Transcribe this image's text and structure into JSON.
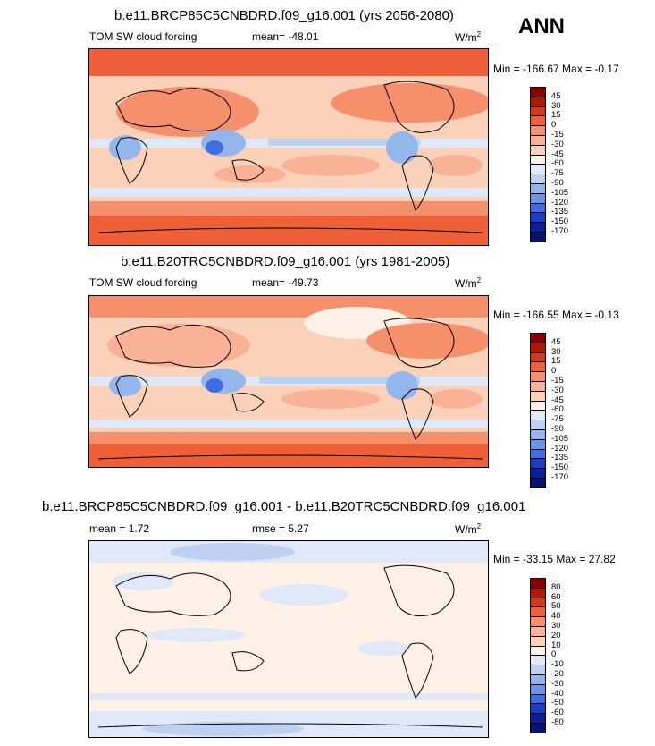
{
  "season": "ANN",
  "panels": [
    {
      "title": "b.e11.BRCP85C5CNBDRD.f09_g16.001 (yrs 2056-2080)",
      "left_label": "TOM SW cloud forcing",
      "center_label": "mean= -48.01",
      "units": "W/m",
      "units_exp": "2",
      "minmax": "Min = -166.67 Max =  -0.17",
      "legend_levels": [
        "45",
        "30",
        "15",
        "0",
        "-15",
        "-30",
        "-45",
        "-60",
        "-75",
        "-90",
        "-105",
        "-120",
        "-135",
        "-150",
        "-170"
      ],
      "legend_colors": [
        "#8b0000",
        "#b01800",
        "#d43a16",
        "#ef6038",
        "#f68f6c",
        "#f9b295",
        "#fcd1ba",
        "#fff1e6",
        "#dfe8f8",
        "#bcd2f0",
        "#95b6ec",
        "#6b94e6",
        "#3f6ee0",
        "#1b3ec8",
        "#0c1e9a",
        "#06126b"
      ],
      "colorbar_range": [
        -170,
        45
      ]
    },
    {
      "title": "b.e11.B20TRC5CNBDRD.f09_g16.001 (yrs 1981-2005)",
      "left_label": "TOM SW cloud forcing",
      "center_label": "mean= -49.73",
      "units": "W/m",
      "units_exp": "2",
      "minmax": "Min = -166.55 Max =  -0.13",
      "legend_levels": [
        "45",
        "30",
        "15",
        "0",
        "-15",
        "-30",
        "-45",
        "-60",
        "-75",
        "-90",
        "-105",
        "-120",
        "-135",
        "-150",
        "-170"
      ],
      "legend_colors": [
        "#8b0000",
        "#b01800",
        "#d43a16",
        "#ef6038",
        "#f68f6c",
        "#f9b295",
        "#fcd1ba",
        "#fff1e6",
        "#dfe8f8",
        "#bcd2f0",
        "#95b6ec",
        "#6b94e6",
        "#3f6ee0",
        "#1b3ec8",
        "#0c1e9a",
        "#06126b"
      ],
      "colorbar_range": [
        -170,
        45
      ]
    },
    {
      "title": "b.e11.BRCP85C5CNBDRD.f09_g16.001 - b.e11.B20TRC5CNBDRD.f09_g16.001",
      "left_label": "mean =   1.72",
      "center_label": "rmse =   5.27",
      "units": "W/m",
      "units_exp": "2",
      "minmax": "Min = -33.15 Max =  27.82",
      "legend_levels": [
        "80",
        "60",
        "50",
        "40",
        "30",
        "20",
        "10",
        "0",
        "-10",
        "-20",
        "-30",
        "-40",
        "-50",
        "-60",
        "-80"
      ],
      "legend_colors": [
        "#8b0000",
        "#b01800",
        "#d43a16",
        "#ef6038",
        "#f68f6c",
        "#f9b295",
        "#fcd1ba",
        "#fff1e6",
        "#dfe8f8",
        "#bcd2f0",
        "#95b6ec",
        "#6b94e6",
        "#3f6ee0",
        "#1b3ec8",
        "#0c1e9a",
        "#06126b"
      ],
      "colorbar_range": [
        -80,
        80
      ]
    }
  ]
}
